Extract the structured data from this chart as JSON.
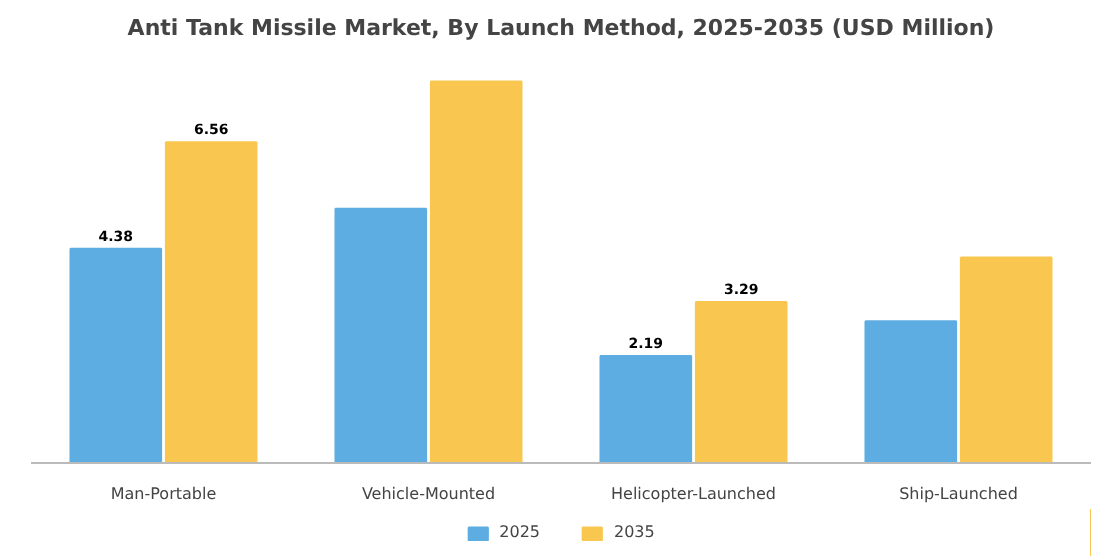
{
  "chart_data": {
    "type": "bar",
    "title": "Anti Tank Missile Market, By Launch Method, 2025-2035 (USD Million)",
    "categories": [
      "Man-Portable",
      "Vehicle-Mounted",
      "Helicopter-Launched",
      "Ship-Launched"
    ],
    "series": [
      {
        "name": "2025",
        "color": "#5dade2",
        "values": [
          4.38,
          5.2,
          2.19,
          2.9
        ],
        "value_labels": [
          "4.38",
          null,
          "2.19",
          null
        ]
      },
      {
        "name": "2035",
        "color": "#f9c74f",
        "values": [
          6.56,
          7.8,
          3.29,
          4.2
        ],
        "value_labels": [
          "6.56",
          null,
          "3.29",
          null
        ]
      }
    ],
    "legend": "bottom"
  }
}
